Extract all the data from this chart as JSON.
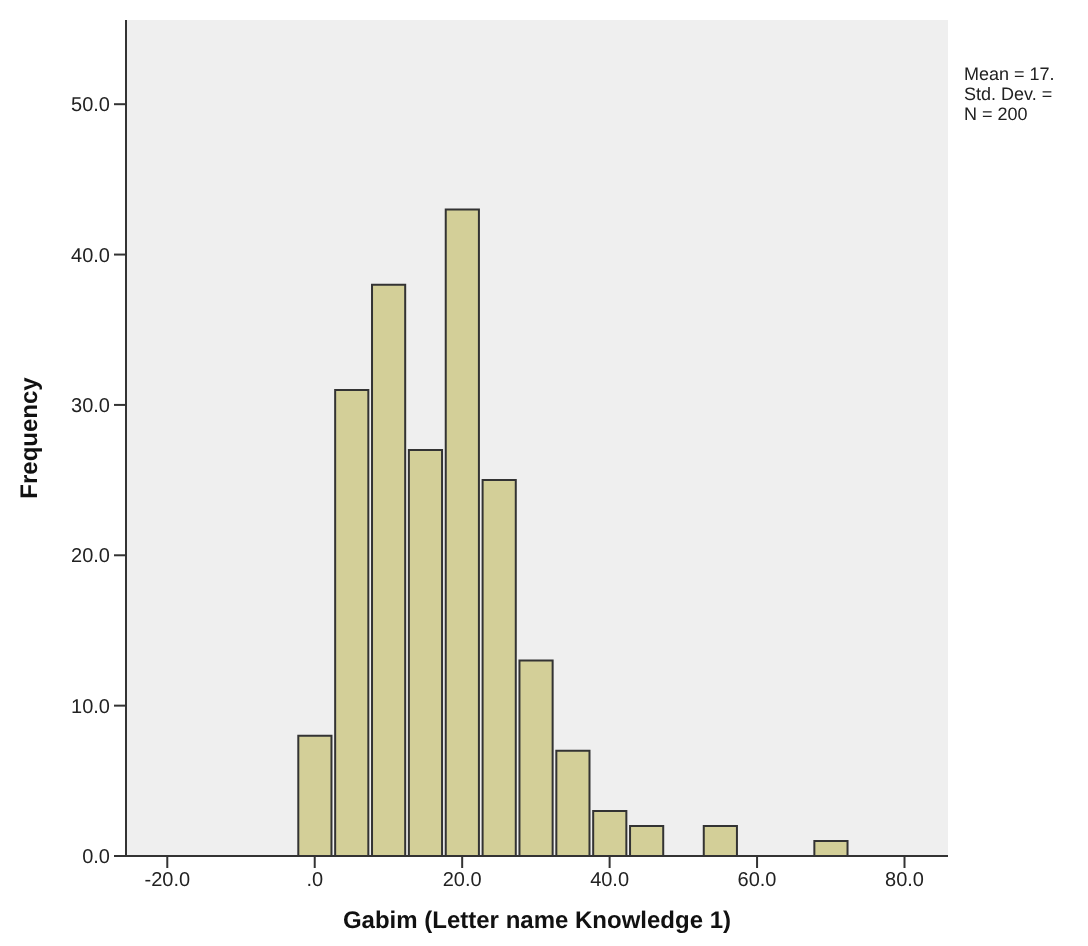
{
  "chart_data": {
    "type": "histogram",
    "xlabel": "Gabim (Letter name Knowledge 1)",
    "ylabel": "Frequency",
    "bins": [
      -2.5,
      2.5,
      7.5,
      12.5,
      17.5,
      22.5,
      27.5,
      32.5,
      37.5,
      42.5,
      47.5,
      52.5,
      57.5,
      62.5,
      67.5,
      72.5
    ],
    "values": [
      8,
      31,
      38,
      27,
      43,
      25,
      13,
      7,
      3,
      2,
      0,
      2,
      0,
      0,
      1
    ],
    "color": "#d3cf98",
    "xlim": [
      -25.6,
      85.9
    ],
    "ylim": [
      0,
      55.6
    ],
    "xticks": [
      {
        "value": -20,
        "label": "-20.0"
      },
      {
        "value": 0,
        "label": ".0"
      },
      {
        "value": 20,
        "label": "20.0"
      },
      {
        "value": 40,
        "label": "40.0"
      },
      {
        "value": 60,
        "label": "60.0"
      },
      {
        "value": 80,
        "label": "80.0"
      }
    ],
    "yticks": [
      {
        "value": 0,
        "label": "0.0"
      },
      {
        "value": 10,
        "label": "10.0"
      },
      {
        "value": 20,
        "label": "20.0"
      },
      {
        "value": 30,
        "label": "30.0"
      },
      {
        "value": 40,
        "label": "40.0"
      },
      {
        "value": 50,
        "label": "50.0"
      }
    ],
    "annotations": [
      "Mean = 17.",
      "Std. Dev. =",
      "N = 200"
    ]
  }
}
